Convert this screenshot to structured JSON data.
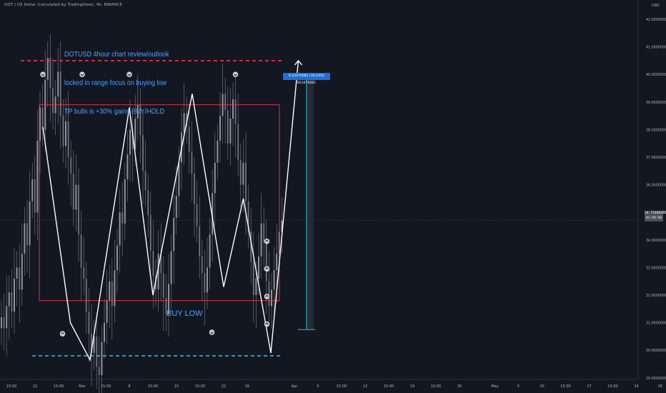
{
  "header": {
    "title": "DOT / US Dollar (calculated by TradingView), 4h, BINANCE",
    "currency": "USD"
  },
  "annotations": {
    "note_lines": [
      "DOTUSD 4hour chart review/outlook",
      "locked in range focus on buying low",
      "TP bulls is +30% gains BUY/HOLD"
    ],
    "buy_low": "BUY LOW",
    "measure_label": "9.23476681 (30.03%) 923476681"
  },
  "price_tag": {
    "price": "34.71468282",
    "countdown": "01:59:50"
  },
  "colors": {
    "background": "#131722",
    "candles": "#9598a1",
    "resistance": "#f23645",
    "support": "#29b6f6",
    "range_box": "#f23645",
    "measure": "#26c6da",
    "note_text": "#4aa3ff"
  },
  "chart_data": {
    "type": "line",
    "title": "DOT / US Dollar (calculated by TradingView), 4h, BINANCE",
    "xlabel": "",
    "ylabel": "USD",
    "ylim": [
      27.7,
      43.0
    ],
    "grid": false,
    "y_ticks": [
      {
        "v": 28,
        "label": "28.00000000"
      },
      {
        "v": 29,
        "label": "29.00000000"
      },
      {
        "v": 30,
        "label": "30.00000000"
      },
      {
        "v": 31,
        "label": "31.00000000"
      },
      {
        "v": 32,
        "label": "32.00000000"
      },
      {
        "v": 33,
        "label": "33.00000000"
      },
      {
        "v": 34,
        "label": "34.00000000"
      },
      {
        "v": 35,
        "label": "35.00000000"
      },
      {
        "v": 36,
        "label": "36.00000000"
      },
      {
        "v": 37,
        "label": "37.00000000"
      },
      {
        "v": 38,
        "label": "38.00000000"
      },
      {
        "v": 39,
        "label": "39.00000000"
      },
      {
        "v": 40,
        "label": "40.00000000"
      },
      {
        "v": 41,
        "label": "41.00000000"
      },
      {
        "v": 42,
        "label": "42.00000000"
      }
    ],
    "x_ticks": [
      {
        "i": -6,
        "label": "15:00"
      },
      {
        "i": 0,
        "label": "22"
      },
      {
        "i": 6,
        "label": "15:00"
      },
      {
        "i": 12,
        "label": "Mar"
      },
      {
        "i": 18,
        "label": "15:00"
      },
      {
        "i": 24,
        "label": "8"
      },
      {
        "i": 30,
        "label": "15:00"
      },
      {
        "i": 36,
        "label": "15"
      },
      {
        "i": 42,
        "label": "15:00"
      },
      {
        "i": 48,
        "label": "22"
      },
      {
        "i": 54,
        "label": "26"
      },
      {
        "i": 66,
        "label": "Apr"
      },
      {
        "i": 72,
        "label": "5"
      },
      {
        "i": 78,
        "label": "15:00"
      },
      {
        "i": 84,
        "label": "12"
      },
      {
        "i": 90,
        "label": "15:00"
      },
      {
        "i": 96,
        "label": "19"
      },
      {
        "i": 102,
        "label": "15:00"
      },
      {
        "i": 108,
        "label": "26"
      },
      {
        "i": 117,
        "label": "May"
      },
      {
        "i": 123,
        "label": "5"
      },
      {
        "i": 129,
        "label": "10"
      },
      {
        "i": 135,
        "label": "15:00"
      },
      {
        "i": 141,
        "label": "17"
      },
      {
        "i": 147,
        "label": "15:00"
      },
      {
        "i": 153,
        "label": "24"
      },
      {
        "i": 159,
        "label": "28"
      }
    ],
    "levels": {
      "current_price": 34.71468282,
      "resistance": 40.5,
      "support": 29.8,
      "range_top": 38.9,
      "range_bottom": 31.8,
      "measure_low": 30.75,
      "measure_high": 40.0
    },
    "candle_series": {
      "name": "DOTUSD",
      "close": [
        31.2,
        30.8,
        31.6,
        32.1,
        31.4,
        32.6,
        33.0,
        32.2,
        33.5,
        34.6,
        33.8,
        35.4,
        36.2,
        35.0,
        37.6,
        38.8,
        38.0,
        39.8,
        40.6,
        39.5,
        38.6,
        39.2,
        40.1,
        38.5,
        37.4,
        38.3,
        37.0,
        36.4,
        35.1,
        36.0,
        34.2,
        33.0,
        32.6,
        31.4,
        30.6,
        29.9,
        30.5,
        29.4,
        29.1,
        30.3,
        31.0,
        31.8,
        32.5,
        31.6,
        32.9,
        33.8,
        35.0,
        34.6,
        36.2,
        37.1,
        38.0,
        37.3,
        38.4,
        38.9,
        37.8,
        36.5,
        35.8,
        34.9,
        33.6,
        32.7,
        32.2,
        33.5,
        32.8,
        31.9,
        31.3,
        32.4,
        33.6,
        34.8,
        35.6,
        36.8,
        37.9,
        38.6,
        38.1,
        37.2,
        36.4,
        35.3,
        34.5,
        33.4,
        32.8,
        32.1,
        33.0,
        34.2,
        35.7,
        36.8,
        37.6,
        38.5,
        39.3,
        38.7,
        37.5,
        38.4,
        39.1,
        38.2,
        36.9,
        36.0,
        36.8,
        35.4,
        34.3,
        33.2,
        32.0,
        32.6,
        33.4,
        34.6,
        33.9,
        32.5,
        31.6,
        32.2,
        32.9,
        33.5,
        34.3,
        34.7
      ]
    },
    "projection_path": {
      "name": "",
      "points": [
        {
          "i": 2,
          "v": 38.1
        },
        {
          "i": 9,
          "v": 31.0
        },
        {
          "i": 14,
          "v": 29.65
        },
        {
          "i": 24,
          "v": 38.8
        },
        {
          "i": 30,
          "v": 32.0
        },
        {
          "i": 40,
          "v": 39.3
        },
        {
          "i": 48,
          "v": 32.3
        },
        {
          "i": 53,
          "v": 35.5
        },
        {
          "i": 60,
          "v": 29.9
        },
        {
          "i": 67,
          "v": 40.5
        }
      ]
    },
    "markers": [
      {
        "i": 2,
        "v": 40.0,
        "dir": "down"
      },
      {
        "i": 12,
        "v": 40.0,
        "dir": "down"
      },
      {
        "i": 24,
        "v": 40.0,
        "dir": "down"
      },
      {
        "i": 51,
        "v": 40.0,
        "dir": "down"
      },
      {
        "i": 7,
        "v": 30.6,
        "dir": "up"
      },
      {
        "i": 45,
        "v": 30.65,
        "dir": "down"
      },
      {
        "i": 59,
        "v": 33.95,
        "dir": "up"
      },
      {
        "i": 59,
        "v": 32.95,
        "dir": "up"
      },
      {
        "i": 59,
        "v": 31.95,
        "dir": "up"
      },
      {
        "i": 59,
        "v": 30.95,
        "dir": "up"
      }
    ]
  }
}
